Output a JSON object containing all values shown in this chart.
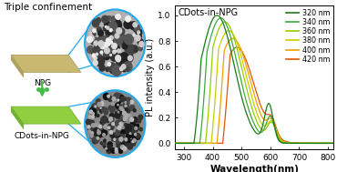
{
  "title_left": "Triple confinement",
  "label_npg": "NPG",
  "label_cdots": "CDots-in-NPG",
  "chart_title": "CDots-in-NPG",
  "xlabel": "Wavelength(nm)",
  "ylabel": "PL intensity (a.u.)",
  "xlim": [
    270,
    820
  ],
  "ylim": [
    -0.05,
    1.08
  ],
  "xticks": [
    300,
    400,
    500,
    600,
    700,
    800
  ],
  "yticks": [
    0.0,
    0.2,
    0.4,
    0.6,
    0.8,
    1.0
  ],
  "legend_labels": [
    "320 nm",
    "340 nm",
    "360 nm",
    "380 nm",
    "400 nm",
    "420 nm"
  ],
  "legend_colors": [
    "#1a7a1a",
    "#3aaa3a",
    "#99cc00",
    "#cccc00",
    "#f0a000",
    "#e05500"
  ],
  "npg_color": "#c8b870",
  "npg_edge": "#aaa060",
  "cdots_color": "#90d040",
  "cdots_edge": "#70b030",
  "arrow_color": "#44bb44",
  "circle_edge_color": "#22aaee",
  "bg_color": "#ffffff"
}
